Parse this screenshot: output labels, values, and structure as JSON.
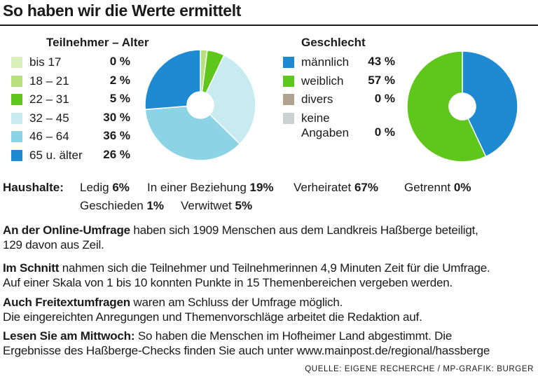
{
  "title": "So haben wir die Werte ermittelt",
  "colors": {
    "age": [
      "#d9f0b8",
      "#b8e07c",
      "#5fc71b",
      "#c8ebf2",
      "#8dd3e6",
      "#1e8ad2"
    ],
    "gender": [
      "#1e8ad2",
      "#5fc71b",
      "#b1a390",
      "#c9d1d1"
    ]
  },
  "chart_data": [
    {
      "type": "pie",
      "title": "Teilnehmer – Alter",
      "categories": [
        "bis 17",
        "18 – 21",
        "22 – 31",
        "32 – 45",
        "46 – 64",
        "65 u. älter"
      ],
      "values": [
        0,
        2,
        5,
        30,
        36,
        26
      ],
      "labels": [
        "0 %",
        "2 %",
        "5 %",
        "30 %",
        "36 %",
        "26 %"
      ]
    },
    {
      "type": "pie",
      "title": "Geschlecht",
      "categories": [
        "männlich",
        "weiblich",
        "divers",
        "keine Angaben"
      ],
      "category_lines": [
        [
          "männlich"
        ],
        [
          "weiblich"
        ],
        [
          "divers"
        ],
        [
          "keine",
          "Angaben"
        ]
      ],
      "values": [
        43,
        57,
        0,
        0
      ],
      "labels": [
        "43 %",
        "57 %",
        "0 %",
        "0 %"
      ]
    }
  ],
  "households": {
    "title": "Haushalte:",
    "items": [
      {
        "label": "Ledig",
        "value": "6%"
      },
      {
        "label": "In einer Beziehung",
        "value": "19%"
      },
      {
        "label": "Verheiratet",
        "value": "67%"
      },
      {
        "label": "Getrennt",
        "value": "0%"
      },
      {
        "label": "Geschieden",
        "value": "1%"
      },
      {
        "label": "Verwitwet",
        "value": "5%"
      }
    ]
  },
  "paragraphs": {
    "p1_bold": "An der Online-Umfrage",
    "p1_line1": " haben sich 1909 Menschen aus dem Landkreis Haßberge beteiligt,",
    "p1_line2": "129 davon aus Zeil.",
    "p2_bold": "Im Schnitt",
    "p2_line1": " nahmen sich die Teilnehmer und Teilnehmerinnen 4,9 Minuten Zeit für die Umfrage.",
    "p2_line2": "Auf einer Skala von 1 bis 10 konnten Punkte in 15 Themenbereichen vergeben werden.",
    "p3_bold": "Auch Freitextumfragen",
    "p3_line1": " waren am Schluss der Umfrage möglich.",
    "p3_line2": "Die eingereichten Anregungen und Themenvorschläge arbeitet die Redaktion auf.",
    "p4_bold": "Lesen Sie am Mittwoch:",
    "p4_line1": " So haben die Menschen im Hofheimer Land abgestimmt. Die",
    "p4_line2": "Ergebnisse des Haßberge-Checks finden Sie auch unter www.mainpost.de/regional/hassberge"
  },
  "source": "QUELLE: EIGENE RECHERCHE / MP-GRAFIK: BURGER"
}
